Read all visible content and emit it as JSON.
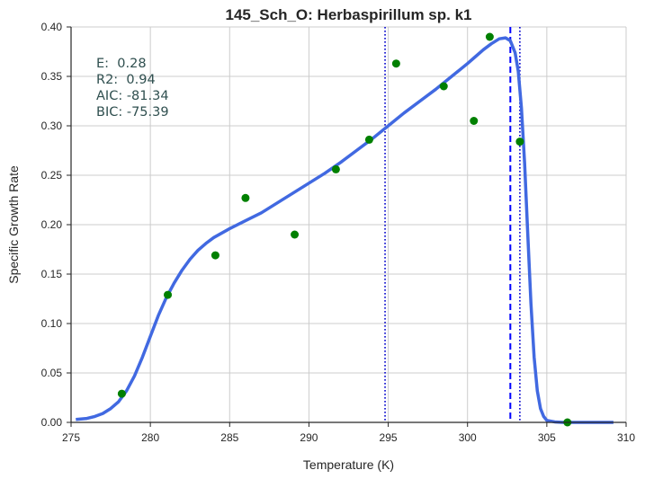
{
  "chart_data": {
    "type": "scatter",
    "title": "145_Sch_O: Herbaspirillum sp. k1",
    "xlabel": "Temperature (K)",
    "ylabel": "Specific Growth Rate",
    "xlim": [
      275,
      310
    ],
    "ylim": [
      0,
      0.4
    ],
    "xticks": [
      {
        "value": 275,
        "label": "275"
      },
      {
        "value": 280,
        "label": "280"
      },
      {
        "value": 285,
        "label": "285"
      },
      {
        "value": 290,
        "label": "290"
      },
      {
        "value": 295,
        "label": "295"
      },
      {
        "value": 300,
        "label": "300"
      },
      {
        "value": 305,
        "label": "305"
      },
      {
        "value": 310,
        "label": "310"
      }
    ],
    "yticks": [
      {
        "value": 0.0,
        "label": "0.00"
      },
      {
        "value": 0.05,
        "label": "0.05"
      },
      {
        "value": 0.1,
        "label": "0.10"
      },
      {
        "value": 0.15,
        "label": "0.15"
      },
      {
        "value": 0.2,
        "label": "0.20"
      },
      {
        "value": 0.25,
        "label": "0.25"
      },
      {
        "value": 0.3,
        "label": "0.30"
      },
      {
        "value": 0.35,
        "label": "0.35"
      },
      {
        "value": 0.4,
        "label": "0.40"
      }
    ],
    "grid": true,
    "points": {
      "color": "#008000",
      "x": [
        278.2,
        281.1,
        284.1,
        286.0,
        289.1,
        291.7,
        293.8,
        295.5,
        298.5,
        300.4,
        301.4,
        303.3,
        306.3
      ],
      "y": [
        0.029,
        0.129,
        0.169,
        0.227,
        0.19,
        0.256,
        0.286,
        0.363,
        0.34,
        0.305,
        0.39,
        0.284,
        0.0
      ]
    },
    "fit_curve": {
      "color": "#4169e1",
      "x": [
        275.3,
        276.0,
        276.5,
        277.0,
        277.5,
        278.0,
        278.5,
        279.0,
        279.5,
        280.0,
        280.5,
        281.0,
        281.5,
        282.0,
        282.5,
        283.0,
        283.5,
        284.0,
        285.0,
        286.0,
        287.0,
        288.0,
        289.0,
        290.0,
        291.0,
        292.0,
        293.0,
        294.0,
        295.0,
        296.0,
        297.0,
        298.0,
        299.0,
        300.0,
        300.5,
        301.0,
        301.5,
        302.0,
        302.4,
        302.7,
        303.0,
        303.2,
        303.4,
        303.6,
        303.8,
        304.0,
        304.2,
        304.4,
        304.6,
        304.8,
        305.0,
        305.5,
        306.0,
        307.0,
        308.0,
        309.2
      ],
      "y": [
        0.003,
        0.004,
        0.006,
        0.009,
        0.014,
        0.021,
        0.032,
        0.047,
        0.066,
        0.087,
        0.108,
        0.126,
        0.141,
        0.154,
        0.165,
        0.174,
        0.181,
        0.187,
        0.196,
        0.204,
        0.212,
        0.222,
        0.232,
        0.242,
        0.252,
        0.263,
        0.275,
        0.287,
        0.3,
        0.313,
        0.325,
        0.337,
        0.35,
        0.363,
        0.37,
        0.377,
        0.383,
        0.388,
        0.389,
        0.386,
        0.374,
        0.355,
        0.318,
        0.262,
        0.19,
        0.12,
        0.066,
        0.032,
        0.014,
        0.006,
        0.002,
        0.0005,
        0.0,
        0.0,
        0.0,
        0.0
      ]
    },
    "vlines": [
      {
        "x": 294.8,
        "style": "dotted",
        "color": "#0000cc"
      },
      {
        "x": 302.7,
        "style": "dashed",
        "color": "#0000ff"
      },
      {
        "x": 303.3,
        "style": "dotted",
        "color": "#0000cc"
      }
    ],
    "annotation": {
      "color": "#2f4f4f",
      "lines": [
        "E:  0.28",
        "R2:  0.94",
        "AIC: -81.34",
        "BIC: -75.39"
      ]
    }
  }
}
